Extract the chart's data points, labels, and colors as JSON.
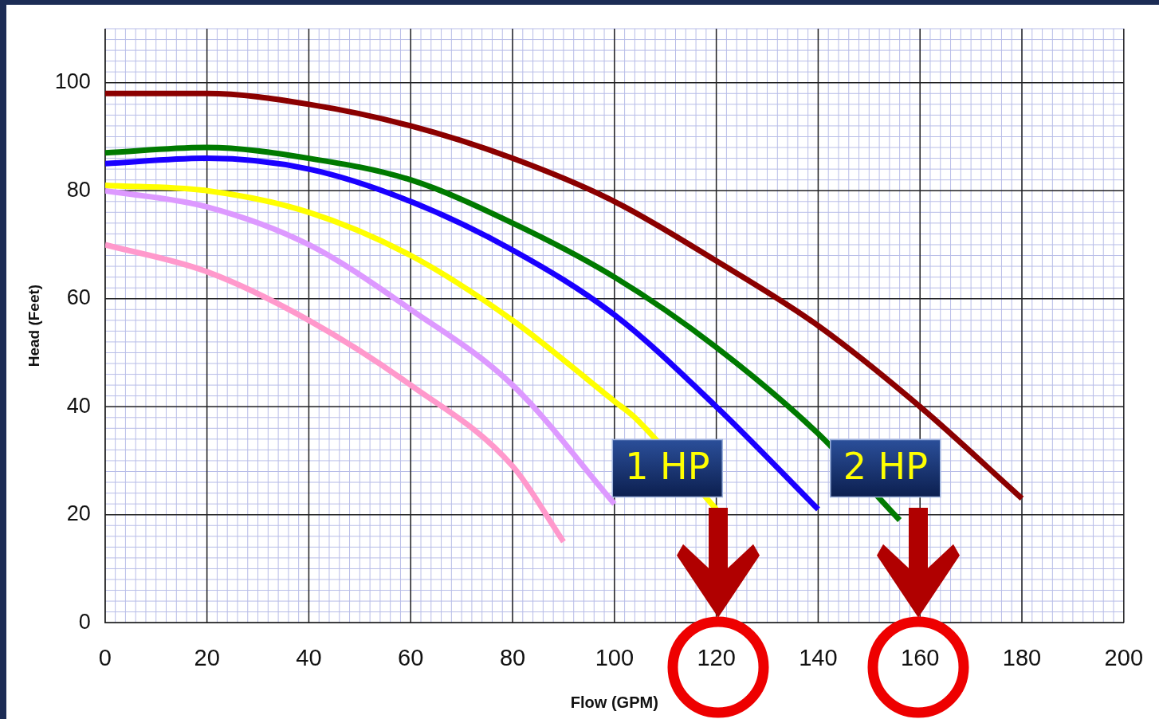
{
  "chart_data": {
    "type": "line",
    "xlabel": "Flow (GPM)",
    "ylabel": "Head (Feet)",
    "xlim": [
      0,
      200
    ],
    "xticks": [
      0,
      20,
      40,
      60,
      80,
      100,
      120,
      140,
      160,
      180,
      200
    ],
    "ylim": [
      0,
      110
    ],
    "yticks": [
      0,
      20,
      40,
      60,
      80,
      100
    ],
    "grid": true,
    "marker": "none",
    "line_style": "solid",
    "series": [
      {
        "color": "#8b0000",
        "x": [
          0,
          20,
          40,
          60,
          80,
          100,
          120,
          140,
          160,
          180
        ],
        "values": [
          98,
          98,
          96,
          92,
          86,
          78,
          67,
          55,
          40,
          23
        ]
      },
      {
        "color": "#007a00",
        "x": [
          0,
          20,
          40,
          60,
          80,
          100,
          120,
          140,
          156
        ],
        "values": [
          87,
          88,
          86,
          82,
          74,
          64,
          51,
          35,
          19
        ]
      },
      {
        "color": "#1a00ff",
        "x": [
          0,
          20,
          40,
          60,
          80,
          100,
          120,
          140
        ],
        "values": [
          85,
          86,
          84,
          78,
          69,
          57,
          40,
          21
        ]
      },
      {
        "color": "#ffff00",
        "x": [
          0,
          20,
          40,
          60,
          80,
          100,
          104,
          120
        ],
        "values": [
          81,
          80,
          76,
          68,
          56,
          41,
          38,
          21
        ]
      },
      {
        "color": "#dd99ff",
        "x": [
          0,
          20,
          40,
          60,
          80,
          100
        ],
        "values": [
          80,
          77,
          70,
          58,
          44,
          22
        ]
      },
      {
        "color": "#ff99cc",
        "x": [
          0,
          20,
          40,
          60,
          80,
          90
        ],
        "values": [
          70,
          65,
          56,
          44,
          29,
          15
        ]
      }
    ],
    "annotations": [
      "1 HP",
      "2 HP"
    ]
  }
}
